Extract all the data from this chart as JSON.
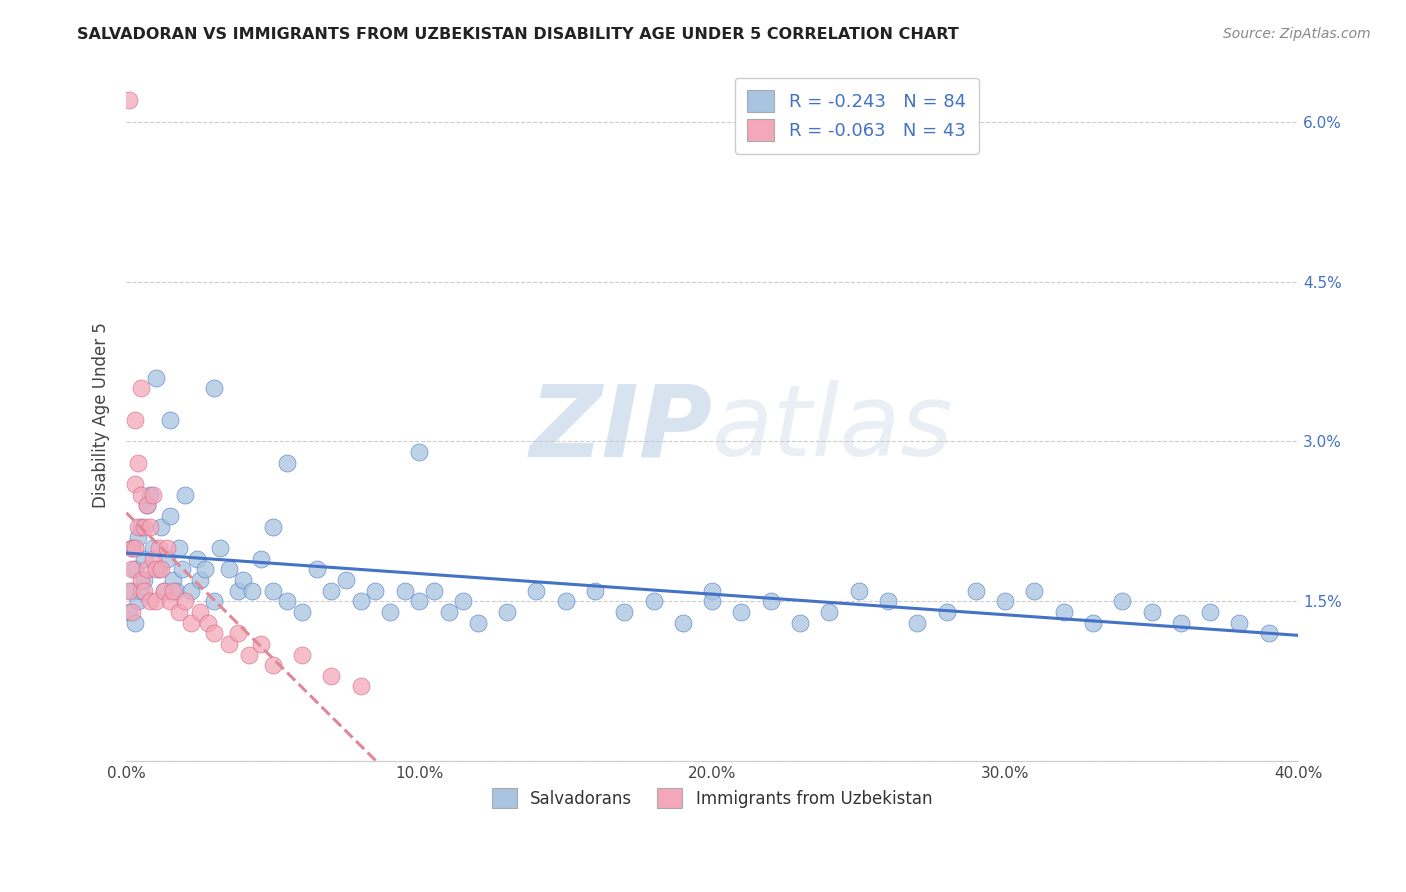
{
  "title": "SALVADORAN VS IMMIGRANTS FROM UZBEKISTAN DISABILITY AGE UNDER 5 CORRELATION CHART",
  "source": "Source: ZipAtlas.com",
  "ylabel": "Disability Age Under 5",
  "xlim": [
    0.0,
    0.4
  ],
  "ylim": [
    0.0,
    0.065
  ],
  "yticks": [
    0.0,
    0.015,
    0.03,
    0.045,
    0.06
  ],
  "ytick_labels": [
    "",
    "1.5%",
    "3.0%",
    "4.5%",
    "6.0%"
  ],
  "xticks": [
    0.0,
    0.1,
    0.2,
    0.3,
    0.4
  ],
  "xtick_labels": [
    "0.0%",
    "10.0%",
    "20.0%",
    "30.0%",
    "40.0%"
  ],
  "salvadoran_R": -0.243,
  "salvadoran_N": 84,
  "uzbekistan_R": -0.063,
  "uzbekistan_N": 43,
  "legend_label1": "Salvadorans",
  "legend_label2": "Immigrants from Uzbekistan",
  "color_salvadoran": "#a8c4e0",
  "color_uzbekistan": "#f4a7b9",
  "line_color_salvadoran": "#4472c4",
  "line_color_uzbekistan": "#e07090",
  "background_color": "#ffffff",
  "watermark_zip": "ZIP",
  "watermark_atlas": "atlas",
  "salv_x": [
    0.001,
    0.002,
    0.002,
    0.003,
    0.003,
    0.004,
    0.004,
    0.005,
    0.005,
    0.006,
    0.006,
    0.007,
    0.008,
    0.009,
    0.01,
    0.011,
    0.012,
    0.013,
    0.014,
    0.015,
    0.016,
    0.017,
    0.018,
    0.019,
    0.02,
    0.022,
    0.024,
    0.025,
    0.027,
    0.03,
    0.032,
    0.035,
    0.038,
    0.04,
    0.043,
    0.046,
    0.05,
    0.05,
    0.055,
    0.06,
    0.065,
    0.07,
    0.075,
    0.08,
    0.085,
    0.09,
    0.095,
    0.1,
    0.105,
    0.11,
    0.115,
    0.12,
    0.13,
    0.14,
    0.15,
    0.16,
    0.17,
    0.18,
    0.19,
    0.2,
    0.21,
    0.22,
    0.23,
    0.24,
    0.25,
    0.26,
    0.27,
    0.28,
    0.29,
    0.3,
    0.31,
    0.32,
    0.33,
    0.34,
    0.35,
    0.36,
    0.37,
    0.38,
    0.39,
    0.015,
    0.03,
    0.055,
    0.1,
    0.2
  ],
  "salv_y": [
    0.014,
    0.016,
    0.02,
    0.013,
    0.018,
    0.015,
    0.021,
    0.016,
    0.022,
    0.019,
    0.017,
    0.024,
    0.025,
    0.02,
    0.036,
    0.018,
    0.022,
    0.016,
    0.019,
    0.023,
    0.017,
    0.016,
    0.02,
    0.018,
    0.025,
    0.016,
    0.019,
    0.017,
    0.018,
    0.015,
    0.02,
    0.018,
    0.016,
    0.017,
    0.016,
    0.019,
    0.022,
    0.016,
    0.015,
    0.014,
    0.018,
    0.016,
    0.017,
    0.015,
    0.016,
    0.014,
    0.016,
    0.015,
    0.016,
    0.014,
    0.015,
    0.013,
    0.014,
    0.016,
    0.015,
    0.016,
    0.014,
    0.015,
    0.013,
    0.016,
    0.014,
    0.015,
    0.013,
    0.014,
    0.016,
    0.015,
    0.013,
    0.014,
    0.016,
    0.015,
    0.016,
    0.014,
    0.013,
    0.015,
    0.014,
    0.013,
    0.014,
    0.013,
    0.012,
    0.032,
    0.035,
    0.028,
    0.029,
    0.015
  ],
  "uzb_x": [
    0.001,
    0.001,
    0.002,
    0.002,
    0.002,
    0.003,
    0.003,
    0.003,
    0.004,
    0.004,
    0.005,
    0.005,
    0.005,
    0.006,
    0.006,
    0.007,
    0.007,
    0.008,
    0.008,
    0.009,
    0.009,
    0.01,
    0.01,
    0.011,
    0.012,
    0.013,
    0.014,
    0.015,
    0.016,
    0.018,
    0.02,
    0.022,
    0.025,
    0.028,
    0.03,
    0.035,
    0.038,
    0.042,
    0.046,
    0.05,
    0.06,
    0.07,
    0.08
  ],
  "uzb_y": [
    0.062,
    0.016,
    0.02,
    0.014,
    0.018,
    0.032,
    0.026,
    0.02,
    0.028,
    0.022,
    0.035,
    0.025,
    0.017,
    0.022,
    0.016,
    0.024,
    0.018,
    0.022,
    0.015,
    0.025,
    0.019,
    0.018,
    0.015,
    0.02,
    0.018,
    0.016,
    0.02,
    0.015,
    0.016,
    0.014,
    0.015,
    0.013,
    0.014,
    0.013,
    0.012,
    0.011,
    0.012,
    0.01,
    0.011,
    0.009,
    0.01,
    0.008,
    0.007
  ]
}
